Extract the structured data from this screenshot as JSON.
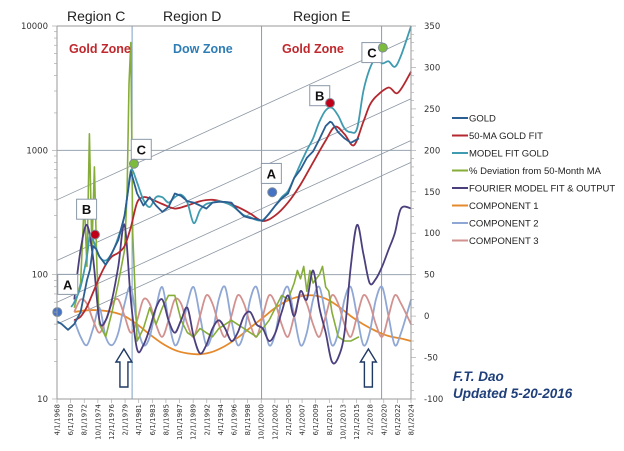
{
  "chart_data": {
    "type": "line",
    "title": "",
    "region_titles": [
      "Region C",
      "Region D",
      "Region E"
    ],
    "zones": [
      {
        "label": "Gold Zone",
        "color": "#c0282d"
      },
      {
        "label": "Dow Zone",
        "color": "#2e7db5"
      },
      {
        "label": "Gold Zone",
        "color": "#c0282d"
      }
    ],
    "x_axis": {
      "type": "date",
      "range": [
        1968.25,
        2024.58
      ],
      "tick_labels": [
        "4/1/1968",
        "6/1/1970",
        "8/1/1972",
        "10/1/1974",
        "12/1/1976",
        "2/1/1979",
        "4/1/1981",
        "6/1/1983",
        "8/1/1985",
        "10/1/1987",
        "12/1/1989",
        "2/1/1992",
        "4/1/1994",
        "6/1/1996",
        "8/1/1998",
        "10/1/2000",
        "12/1/2002",
        "2/1/2005",
        "4/1/2007",
        "6/1/2009",
        "8/1/2011",
        "10/1/2013",
        "12/1/2015",
        "2/1/2018",
        "4/1/2020",
        "6/1/2022",
        "8/1/2024"
      ]
    },
    "y_left": {
      "scale": "log",
      "range": [
        10,
        10000
      ],
      "tick_labels": [
        "10",
        "100",
        "1000",
        "10000"
      ]
    },
    "y_right": {
      "scale": "linear",
      "range": [
        -100,
        350
      ],
      "tick_labels": [
        "-100",
        "-50",
        "0",
        "50",
        "100",
        "150",
        "200",
        "250",
        "300",
        "350"
      ]
    },
    "region_dividers": [
      1980.2,
      2000.8,
      2019.9
    ],
    "legend": {
      "placement": "right",
      "entries": [
        {
          "name": "GOLD",
          "color": "#2b5f91"
        },
        {
          "name": "50-MA GOLD FIT",
          "color": "#b3292f"
        },
        {
          "name": "MODEL FIT GOLD",
          "color": "#3f9bb0"
        },
        {
          "name": "% Deviation from 50-Month  MA",
          "color": "#86ad3a"
        },
        {
          "name": "FOURIER MODEL FIT & OUTPUT",
          "color": "#4c3f7e"
        },
        {
          "name": "COMPONENT 1",
          "color": "#e58a2c"
        },
        {
          "name": "COMPONENT 2",
          "color": "#8fa7d4"
        },
        {
          "name": "COMPONENT 3",
          "color": "#d2918f"
        }
      ]
    },
    "series": [
      {
        "name": "GOLD",
        "axis": "left",
        "x": [
          1968.3,
          1969,
          1970,
          1971,
          1972,
          1973,
          1973.5,
          1974,
          1974.5,
          1975,
          1976,
          1977,
          1978,
          1979,
          1979.5,
          1980.0,
          1980.3,
          1981,
          1982,
          1983,
          1984,
          1985,
          1986,
          1987,
          1988,
          1989,
          1990,
          1991,
          1992,
          1993,
          1994,
          1995,
          1996,
          1997,
          1998,
          1999,
          2000,
          2001,
          2002,
          2003,
          2004,
          2005,
          2006,
          2007,
          2008,
          2009,
          2010,
          2011,
          2011.7,
          2012,
          2013,
          2014,
          2015,
          2016.3
        ],
        "y": [
          42,
          40,
          36,
          40,
          50,
          90,
          110,
          170,
          160,
          140,
          120,
          150,
          190,
          300,
          450,
          680,
          600,
          450,
          360,
          420,
          360,
          320,
          350,
          450,
          430,
          390,
          380,
          360,
          340,
          380,
          385,
          385,
          380,
          330,
          295,
          285,
          280,
          270,
          310,
          360,
          410,
          450,
          600,
          700,
          870,
          980,
          1230,
          1570,
          1700,
          1670,
          1400,
          1250,
          1150,
          1250
        ]
      },
      {
        "name": "50-MA GOLD FIT",
        "axis": "left",
        "x": [
          1971,
          1972,
          1973,
          1974,
          1975,
          1976,
          1977,
          1978,
          1979,
          1980,
          1981,
          1982,
          1983,
          1985,
          1987,
          1989,
          1991,
          1993,
          1995,
          1997,
          1999,
          2001,
          2003,
          2005,
          2007,
          2009,
          2011,
          2012.5,
          2014,
          2015.5,
          2017,
          2018,
          2019,
          2021,
          2022.5,
          2024.6
        ],
        "y": [
          43,
          46,
          55,
          72,
          95,
          120,
          140,
          150,
          170,
          240,
          380,
          420,
          410,
          370,
          340,
          360,
          390,
          400,
          380,
          350,
          310,
          270,
          300,
          380,
          530,
          800,
          1200,
          1550,
          1350,
          1100,
          1700,
          2300,
          2700,
          3200,
          2900,
          4300
        ]
      },
      {
        "name": "MODEL FIT GOLD",
        "axis": "left",
        "x": [
          1970.5,
          1971,
          1972,
          1973,
          1973.5,
          1974,
          1975,
          1976,
          1977,
          1978,
          1979,
          1979.8,
          1980.2,
          1981,
          1982,
          1983,
          1984,
          1985,
          1986,
          1987,
          1988,
          1989,
          1990,
          1991,
          1992,
          1993,
          1994,
          1995,
          1996,
          1997,
          1998,
          1999,
          2000,
          2001,
          2002,
          2003,
          2004,
          2005,
          2006,
          2007,
          2008,
          2009,
          2010,
          2011,
          2012,
          2013,
          2014,
          2015,
          2016,
          2017,
          2018,
          2019,
          2020,
          2021,
          2022,
          2023,
          2024.6
        ],
        "y": [
          55,
          60,
          80,
          140,
          210,
          190,
          140,
          130,
          150,
          200,
          300,
          600,
          700,
          550,
          400,
          350,
          420,
          420,
          380,
          420,
          440,
          380,
          260,
          330,
          370,
          380,
          390,
          380,
          360,
          330,
          300,
          290,
          275,
          275,
          310,
          360,
          420,
          470,
          600,
          780,
          1000,
          1250,
          1700,
          2100,
          2200,
          1900,
          1500,
          1400,
          1500,
          3000,
          4500,
          5500,
          5000,
          5200,
          4700,
          5800,
          10000
        ]
      },
      {
        "name": "% Deviation from 50-Month MA",
        "axis": "right",
        "x": [
          1971,
          1972,
          1972.6,
          1973,
          1973.4,
          1973.8,
          1974.2,
          1974.6,
          1975,
          1976,
          1977,
          1978,
          1979,
          1979.4,
          1979.7,
          1980.0,
          1980.3,
          1981,
          1982,
          1983,
          1984,
          1985,
          1986,
          1987,
          1988,
          1989,
          1990,
          1991,
          1992,
          1993,
          1994,
          1995,
          1996,
          1997,
          1998,
          1999,
          2000,
          2001,
          2002,
          2003,
          2004,
          2005,
          2006,
          2006.5,
          2007,
          2007.5,
          2008,
          2008.5,
          2009,
          2010,
          2010.5,
          2011,
          2011.5,
          2012,
          2013,
          2014,
          2015,
          2016.3
        ],
        "y": [
          10,
          40,
          140,
          60,
          220,
          80,
          180,
          60,
          -10,
          -25,
          5,
          40,
          80,
          150,
          280,
          330,
          100,
          -30,
          -15,
          10,
          -10,
          10,
          25,
          25,
          -5,
          -20,
          -25,
          -15,
          -20,
          -25,
          -15,
          -10,
          -5,
          -10,
          -15,
          -20,
          -25,
          -15,
          -5,
          10,
          25,
          20,
          40,
          55,
          45,
          60,
          30,
          55,
          40,
          50,
          60,
          35,
          30,
          5,
          -25,
          -30,
          -30,
          -25
        ]
      },
      {
        "name": "FOURIER MODEL FIT & OUTPUT",
        "axis": "right",
        "x": [
          1971,
          1972,
          1973,
          1974,
          1975,
          1976,
          1977,
          1978,
          1979,
          1980,
          1981,
          1982,
          1983,
          1984,
          1985,
          1986,
          1987,
          1988,
          1989,
          1990,
          1991,
          1992,
          1993,
          1994,
          1995,
          1996,
          1997,
          1998,
          1999,
          2000,
          2001,
          2002,
          2003,
          2004,
          2005,
          2006,
          2007,
          2008,
          2009,
          2010,
          2011,
          2012,
          2013,
          2014,
          2015,
          2016,
          2017,
          2018,
          2019,
          2020,
          2021,
          2022,
          2023,
          2024.6
        ],
        "y": [
          20,
          80,
          110,
          70,
          -5,
          -5,
          20,
          60,
          110,
          20,
          -40,
          -35,
          -15,
          10,
          20,
          -5,
          -20,
          -5,
          10,
          -25,
          -45,
          -35,
          -15,
          -5,
          -15,
          -30,
          -20,
          0,
          5,
          -10,
          -15,
          -30,
          -20,
          5,
          25,
          0,
          30,
          20,
          55,
          10,
          -20,
          -55,
          -50,
          -20,
          60,
          110,
          75,
          40,
          45,
          60,
          80,
          100,
          130,
          130
        ]
      },
      {
        "name": "COMPONENT 1",
        "axis": "right",
        "x": [
          1971,
          1973,
          1975,
          1977,
          1979,
          1981,
          1983,
          1985,
          1987,
          1989,
          1991,
          1993,
          1995,
          1997,
          1999,
          2001,
          2003,
          2005,
          2007,
          2009,
          2011,
          2013,
          2015,
          2017,
          2019,
          2021,
          2023,
          2024.6
        ],
        "y": [
          5,
          7,
          7,
          5,
          0,
          -10,
          -22,
          -33,
          -41,
          -45,
          -46,
          -43,
          -36,
          -26,
          -14,
          -2,
          10,
          19,
          24,
          25,
          21,
          12,
          0,
          -10,
          -18,
          -24,
          -27,
          -30
        ]
      },
      {
        "name": "COMPONENT 2",
        "axis": "right",
        "x": [
          1971,
          1972,
          1973,
          1974,
          1975,
          1976,
          1977,
          1978,
          1979,
          1980,
          1981,
          1982,
          1983,
          1984,
          1985,
          1986,
          1987,
          1988,
          1989,
          1990,
          1991,
          1992,
          1993,
          1994,
          1995,
          1996,
          1997,
          1998,
          1999,
          2000,
          2001,
          2002,
          2003,
          2004,
          2005,
          2006,
          2007,
          2008,
          2009,
          2010,
          2011,
          2012,
          2013,
          2014,
          2015,
          2016,
          2017,
          2018,
          2019,
          2020,
          2021,
          2022,
          2023,
          2024.6
        ],
        "y": [
          -5,
          -25,
          -35,
          -15,
          10,
          -25,
          -35,
          -20,
          15,
          35,
          -10,
          -35,
          -25,
          10,
          35,
          -5,
          -35,
          -20,
          15,
          35,
          0,
          -35,
          -20,
          20,
          35,
          -5,
          -35,
          -20,
          20,
          35,
          0,
          -35,
          -20,
          20,
          35,
          0,
          -35,
          -20,
          20,
          35,
          0,
          -35,
          -20,
          20,
          35,
          0,
          -35,
          -20,
          20,
          35,
          0,
          -35,
          -20,
          20
        ]
      },
      {
        "name": "COMPONENT 3",
        "axis": "right",
        "x": [
          1971,
          1972,
          1973,
          1974,
          1975,
          1976,
          1977,
          1978,
          1979,
          1980,
          1981,
          1982,
          1983,
          1984,
          1985,
          1986,
          1987,
          1988,
          1989,
          1990,
          1991,
          1992,
          1993,
          1994,
          1995,
          1996,
          1997,
          1998,
          1999,
          2000,
          2001,
          2002,
          2003,
          2004,
          2005,
          2006,
          2007,
          2008,
          2009,
          2010,
          2011,
          2012,
          2013,
          2014,
          2015,
          2016,
          2017,
          2018,
          2019,
          2020,
          2021,
          2022,
          2023,
          2024.6
        ],
        "y": [
          5,
          20,
          15,
          -5,
          -20,
          -5,
          15,
          20,
          0,
          -20,
          -5,
          20,
          15,
          -10,
          -25,
          -5,
          20,
          15,
          -10,
          -25,
          0,
          25,
          15,
          -10,
          -25,
          0,
          25,
          15,
          -10,
          -25,
          0,
          25,
          15,
          -10,
          -25,
          0,
          25,
          15,
          -10,
          -25,
          0,
          25,
          15,
          -10,
          -25,
          0,
          25,
          15,
          -10,
          -25,
          0,
          25,
          15,
          -10
        ]
      }
    ],
    "channel_lines": [
      {
        "x": [
          1968.25,
          2024.58
        ],
        "y": [
          400,
          8000
        ]
      },
      {
        "x": [
          1968.25,
          2024.58
        ],
        "y": [
          130,
          2600
        ]
      },
      {
        "x": [
          1968.25,
          2024.58
        ],
        "y": [
          60,
          1200
        ]
      },
      {
        "x": [
          1968.25,
          2024.58
        ],
        "y": [
          40,
          800
        ]
      }
    ],
    "annotations": [
      {
        "label": "A",
        "x": 1968.3,
        "y_marker": 50,
        "marker_color": "#4472c4",
        "box_x": 1969.8,
        "box_y": 82
      },
      {
        "label": "B",
        "x": 1974.3,
        "y_marker": 210,
        "marker_color": "#c00018",
        "box_x": 1972.8,
        "box_y": 330
      },
      {
        "label": "C",
        "x": 1980.5,
        "y_marker": 780,
        "marker_color": "#7dbb3c",
        "box_x": 1981.5,
        "box_y": 1000
      },
      {
        "label": "A",
        "x": 2002.5,
        "y_marker": 460,
        "marker_color": "#4472c4",
        "box_x": 2002.2,
        "box_y": 640
      },
      {
        "label": "B",
        "x": 2011.7,
        "y_marker": 2400,
        "marker_color": "#c00018",
        "box_x": 2009.9,
        "box_y": 2700
      },
      {
        "label": "C",
        "x": 2020.1,
        "y_marker": 6700,
        "marker_color": "#7dbb3c",
        "box_x": 2018.2,
        "box_y": 6000
      }
    ],
    "up_arrows": [
      1978.9,
      2017.8
    ],
    "credit": [
      "F.T. Dao",
      "Updated 5-20-2016"
    ]
  }
}
